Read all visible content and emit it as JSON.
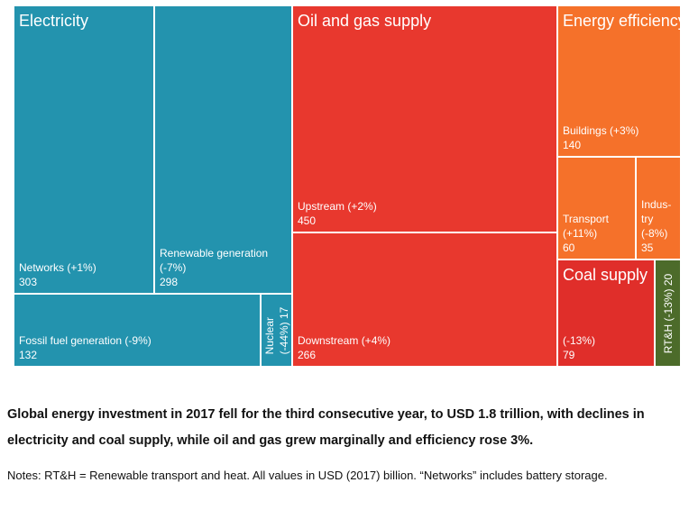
{
  "chart_data": {
    "type": "treemap",
    "unit": "USD (2017) billion",
    "sectors": [
      {
        "key": "electricity",
        "title": "Electricity",
        "color": "#2393AE",
        "items": [
          {
            "key": "networks",
            "lines": [
              "Networks (+1%)",
              "303"
            ],
            "value": 303,
            "change": "+1%"
          },
          {
            "key": "renewable",
            "lines": [
              "Renewable generation",
              "(-7%)",
              "298"
            ],
            "value": 298,
            "change": "-7%"
          },
          {
            "key": "fossil",
            "lines": [
              "Fossil fuel generation (-9%)",
              "132"
            ],
            "value": 132,
            "change": "-9%"
          },
          {
            "key": "nuclear",
            "lines": [
              "Nuclear",
              "(-44%) 17"
            ],
            "value": 17,
            "change": "-44%",
            "rotated": true
          }
        ]
      },
      {
        "key": "oilgas",
        "title": "Oil and gas supply",
        "color": "#E8382E",
        "items": [
          {
            "key": "upstream",
            "lines": [
              "Upstream (+2%)",
              "450"
            ],
            "value": 450,
            "change": "+2%"
          },
          {
            "key": "downstream",
            "lines": [
              "Downstream (+4%)",
              "266"
            ],
            "value": 266,
            "change": "+4%"
          }
        ]
      },
      {
        "key": "efficiency",
        "title": "Energy efficiency",
        "color": "#F5712A",
        "items": [
          {
            "key": "buildings",
            "lines": [
              "Buildings (+3%)",
              "140"
            ],
            "value": 140,
            "change": "+3%"
          },
          {
            "key": "transport",
            "lines": [
              "Transport",
              "(+11%)",
              "60"
            ],
            "value": 60,
            "change": "+11%"
          },
          {
            "key": "industry",
            "lines": [
              "Indus-",
              "try",
              "(-8%)",
              "35"
            ],
            "value": 35,
            "change": "-8%"
          }
        ]
      },
      {
        "key": "coal",
        "title": "Coal supply",
        "color": "#E02E2A",
        "items": [
          {
            "key": "coal_supply",
            "lines": [
              "(-13%)",
              "79"
            ],
            "value": 79,
            "change": "-13%"
          }
        ]
      },
      {
        "key": "rth",
        "title": "",
        "color": "#4C6B2A",
        "items": [
          {
            "key": "rth_item",
            "lines": [
              "RT&H (-13%) 20"
            ],
            "value": 20,
            "change": "-13%",
            "rotated": true
          }
        ]
      }
    ]
  },
  "caption": "Global energy investment in 2017 fell for the third consecutive year, to USD 1.8 trillion, with declines in electricity and coal supply, while oil and gas grew marginally and efficiency rose 3%.",
  "notes": "Notes: RT&H = Renewable transport and heat. All values in USD (2017) billion. “Networks” includes battery storage."
}
